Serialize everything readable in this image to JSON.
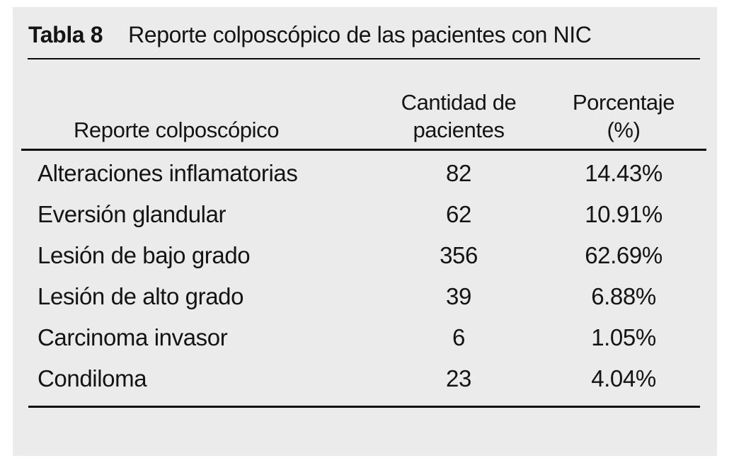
{
  "colors": {
    "page_background": "#ffffff",
    "panel_background": "#ebebeb",
    "text": "#141414",
    "rule": "#0b0b0b"
  },
  "table": {
    "label": "Tabla 8",
    "title": "Reporte colposcópico de las pacientes con NIC",
    "columns": [
      {
        "label": "Reporte colposcópico",
        "lines": [
          "Reporte colposcópico"
        ]
      },
      {
        "label": "Cantidad de pacientes",
        "lines": [
          "Cantidad de",
          "pacientes"
        ]
      },
      {
        "label": "Porcentaje (%)",
        "lines": [
          "Porcentaje",
          "(%)"
        ]
      }
    ],
    "rows": [
      {
        "reporte": "Alteraciones inflamatorias",
        "cantidad": "82",
        "porcentaje": "14.43%"
      },
      {
        "reporte": "Eversión glandular",
        "cantidad": "62",
        "porcentaje": "10.91%"
      },
      {
        "reporte": "Lesión de bajo grado",
        "cantidad": "356",
        "porcentaje": "62.69%"
      },
      {
        "reporte": "Lesión de alto grado",
        "cantidad": "39",
        "porcentaje": "6.88%"
      },
      {
        "reporte": "Carcinoma invasor",
        "cantidad": "6",
        "porcentaje": "1.05%"
      },
      {
        "reporte": "Condiloma",
        "cantidad": "23",
        "porcentaje": "4.04%"
      }
    ]
  }
}
